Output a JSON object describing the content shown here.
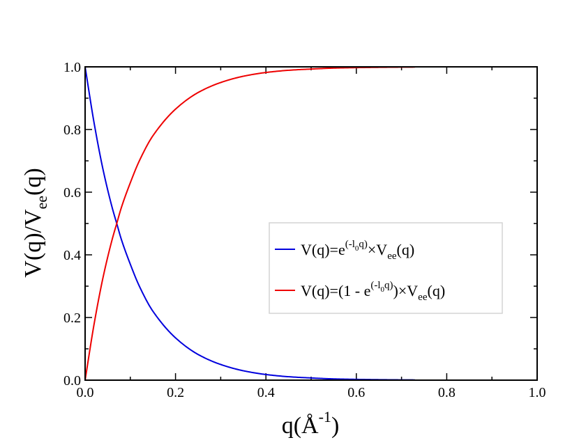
{
  "chart_data": {
    "type": "line",
    "xlabel": {
      "base": "q(Å",
      "sup": "-1",
      "tail": ")"
    },
    "ylabel": {
      "pre": "V(q)/V",
      "sub": "ee",
      "tail": "(q)"
    },
    "xlim": [
      0.0,
      1.0
    ],
    "ylim": [
      0.0,
      1.0
    ],
    "xticks": [
      "0.0",
      "0.2",
      "0.4",
      "0.6",
      "0.8",
      "1.0"
    ],
    "yticks": [
      "0.0",
      "0.2",
      "0.4",
      "0.6",
      "0.8",
      "1.0"
    ],
    "grid": false,
    "legend_position": "center-right",
    "x": [
      0.0,
      0.02,
      0.04,
      0.06,
      0.07,
      0.08,
      0.1,
      0.12,
      0.15,
      0.2,
      0.25,
      0.3,
      0.35,
      0.4,
      0.45,
      0.5,
      0.55,
      0.6,
      0.65,
      0.7,
      0.8,
      0.9,
      1.0
    ],
    "series": [
      {
        "label": {
          "a": "V(q)=e",
          "sup_a": "(-l",
          "sup_sub": "0",
          "sup_b": "q)",
          "b": "×V",
          "sub": "ee",
          "c": "(q)"
        },
        "color": "#0000dd",
        "x_end": 0.73,
        "values": [
          1.0,
          0.82,
          0.67,
          0.55,
          0.5,
          0.45,
          0.37,
          0.3,
          0.22,
          0.135,
          0.082,
          0.05,
          0.03,
          0.018,
          0.011,
          0.007,
          0.004,
          0.0025,
          0.0015,
          0.0009,
          0.0003,
          0.0001,
          0.0
        ]
      },
      {
        "label": {
          "a": "V(q)=(1 - e",
          "sup_a": "(-l",
          "sup_sub": "0",
          "sup_b": "q)",
          "b": ")×V",
          "sub": "ee",
          "c": "(q)"
        },
        "color": "#ee0000",
        "x_end": 0.73,
        "values": [
          0.0,
          0.18,
          0.33,
          0.45,
          0.5,
          0.55,
          0.63,
          0.7,
          0.78,
          0.865,
          0.918,
          0.95,
          0.97,
          0.982,
          0.989,
          0.993,
          0.996,
          0.9975,
          0.9985,
          0.9991,
          0.9997,
          0.9999,
          1.0
        ]
      }
    ]
  }
}
